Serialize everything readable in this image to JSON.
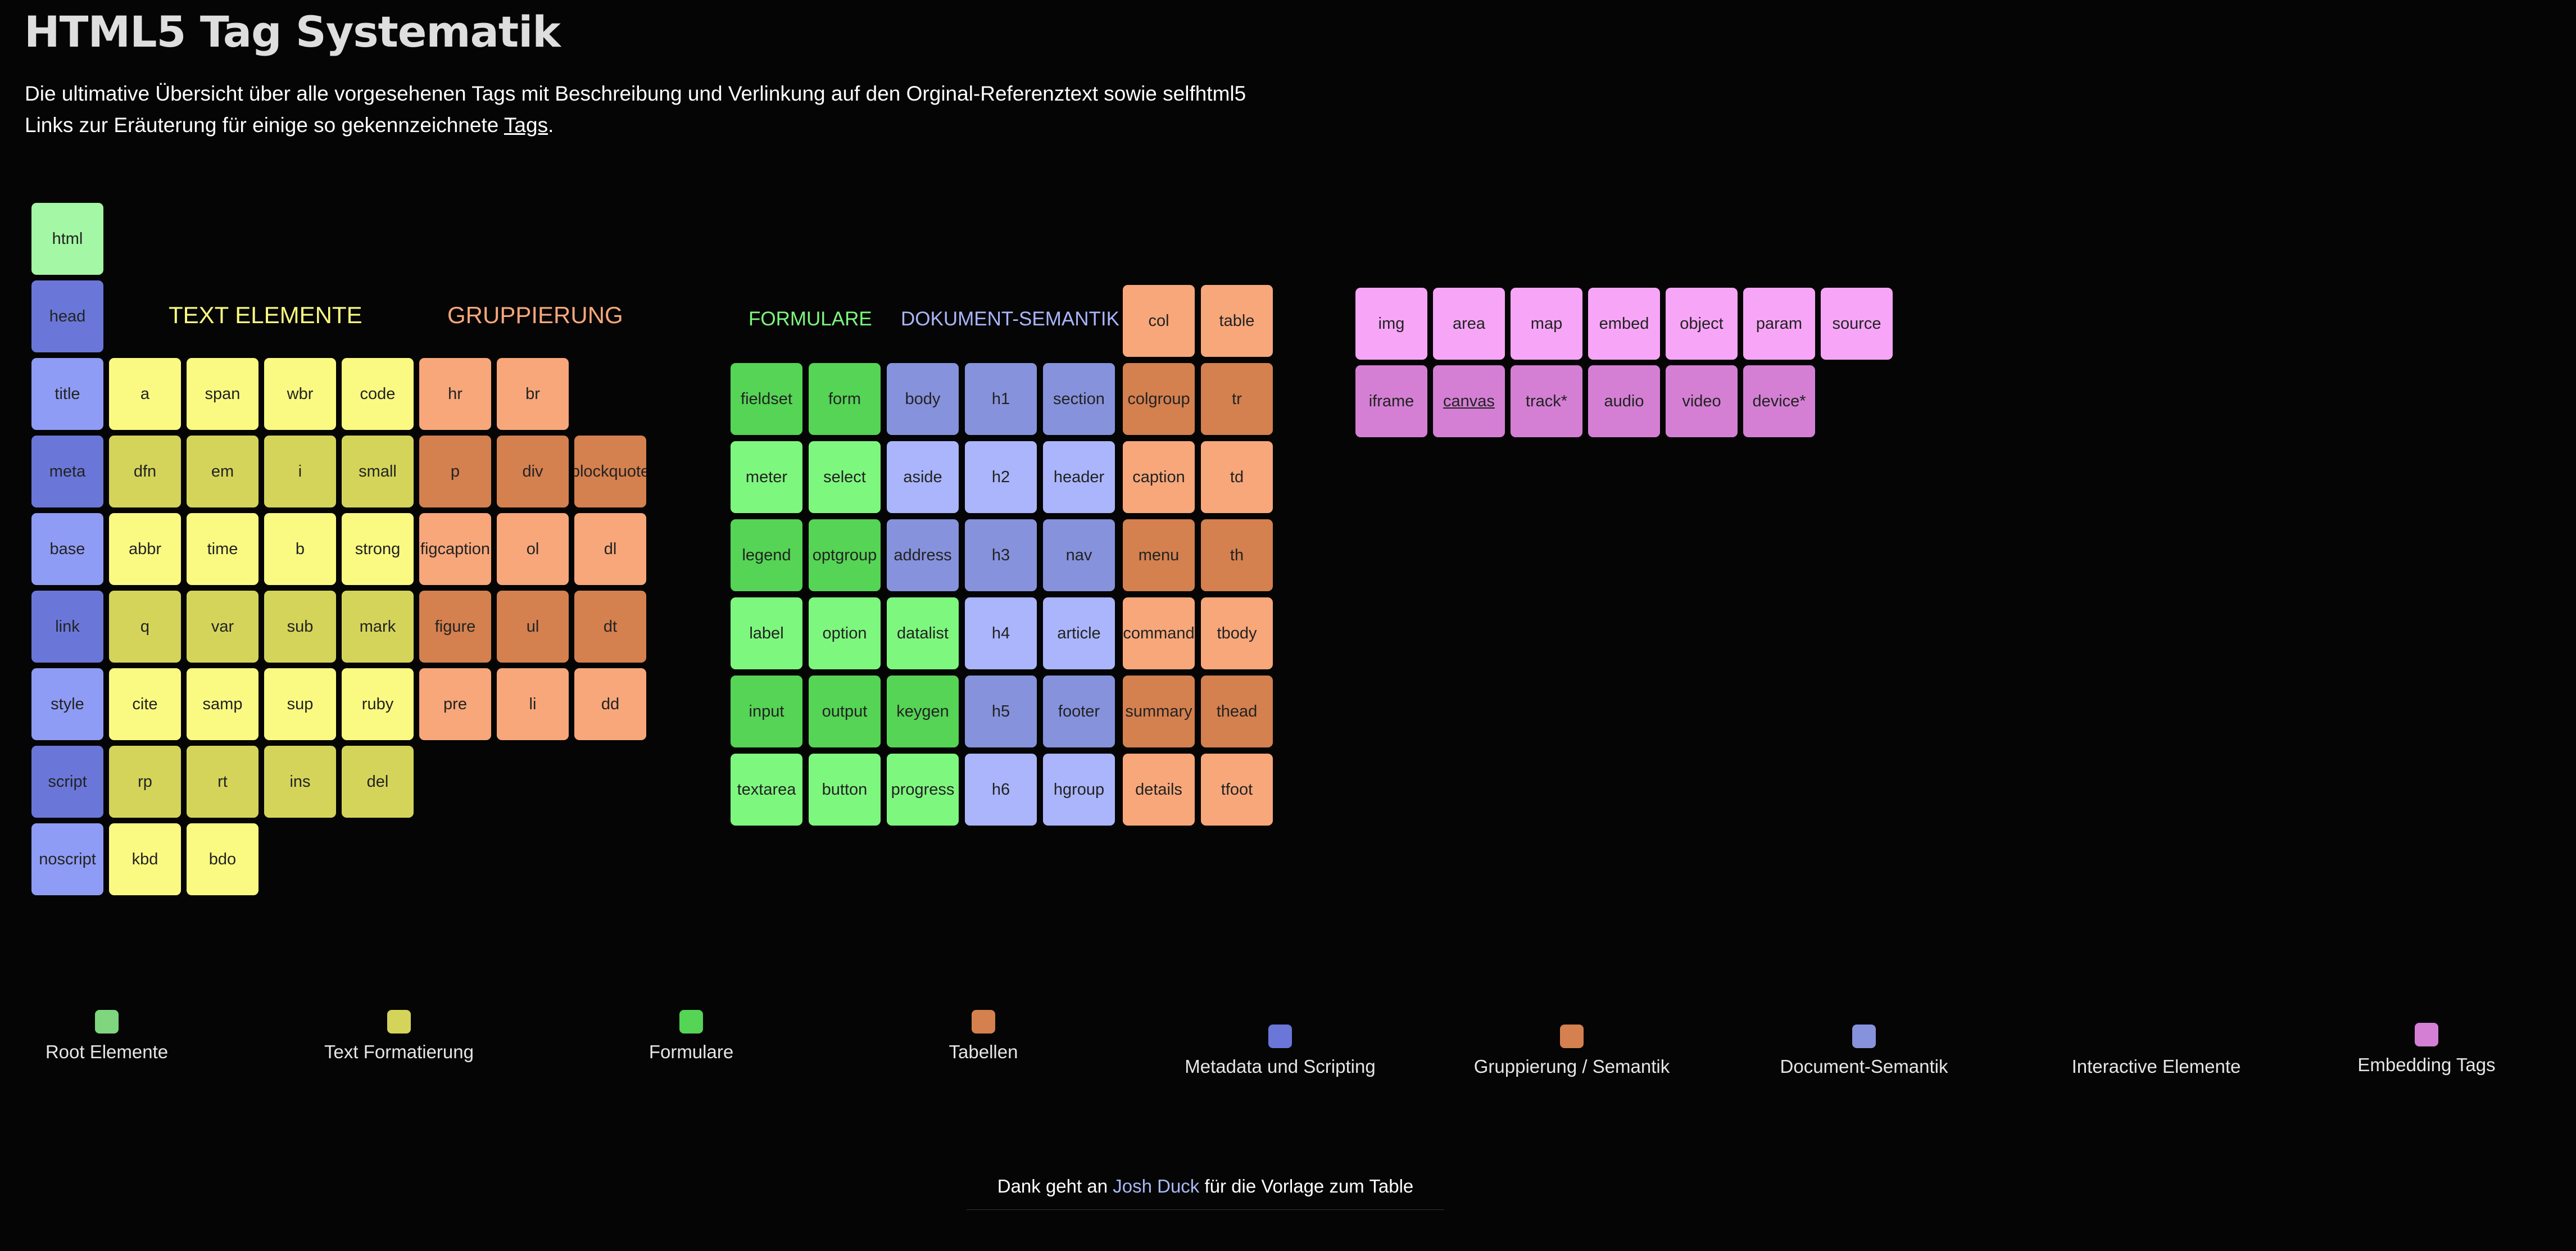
{
  "header": {
    "title": "HTML5 Tag Systematik",
    "intro_line1": "Die ultimative Übersicht über alle vorgesehenen Tags mit Beschreibung und Verlinkung auf den Orginal-Referenztext sowie selfhtml5",
    "intro_line2_prefix": "Links zur Eräuterung für einige so gekennzeichnete ",
    "intro_line2_link": "Tags",
    "intro_line2_suffix": "."
  },
  "colors": {
    "background": "#050505",
    "root": "#a4f7a4",
    "meta_dark": "#6a77d9",
    "meta_light": "#8f9cf5",
    "text_light": "#fafa82",
    "text_dark": "#d4d45a",
    "group_light": "#f7a77a",
    "group_dark": "#d4804f",
    "form_dark": "#55d455",
    "form_light": "#7ef77e",
    "doc_dark": "#8692dc",
    "doc_light": "#aab5fb",
    "embed_light": "#f7a5f7",
    "embed_dark": "#d47fd4"
  },
  "group_labels": {
    "text_elemente": "TEXT ELEMENTE",
    "gruppierung": "GRUPPIERUNG",
    "formulare": "FORMULARE",
    "dokument_semantik": "DOKUMENT-SEMANTIK"
  },
  "tiles": {
    "html": "html",
    "head": "head",
    "title": "title",
    "meta": "meta",
    "base": "base",
    "link": "link",
    "style": "style",
    "script": "script",
    "noscript": "noscript",
    "a": "a",
    "span": "span",
    "wbr": "wbr",
    "code": "code",
    "dfn": "dfn",
    "em": "em",
    "i": "i",
    "small": "small",
    "abbr": "abbr",
    "time": "time",
    "b": "b",
    "strong": "strong",
    "q": "q",
    "var": "var",
    "sub": "sub",
    "mark": "mark",
    "cite": "cite",
    "samp": "samp",
    "sup": "sup",
    "ruby": "ruby",
    "rp": "rp",
    "rt": "rt",
    "ins": "ins",
    "del": "del",
    "kbd": "kbd",
    "bdo": "bdo",
    "hr": "hr",
    "br": "br",
    "p": "p",
    "div": "div",
    "blockquote": "blockquote",
    "figcaption": "figcaption",
    "ol": "ol",
    "dl": "dl",
    "figure": "figure",
    "ul": "ul",
    "dt": "dt",
    "pre": "pre",
    "li": "li",
    "dd": "dd",
    "fieldset": "fieldset",
    "form": "form",
    "meter": "meter",
    "select": "select",
    "legend": "legend",
    "optgroup": "optgroup",
    "label": "label",
    "option": "option",
    "datalist": "datalist",
    "input": "input",
    "output": "output",
    "keygen": "keygen",
    "textarea": "textarea",
    "button": "button",
    "progress": "progress",
    "body": "body",
    "h1": "h1",
    "section": "section",
    "aside": "aside",
    "h2": "h2",
    "header": "header",
    "address": "address",
    "h3": "h3",
    "nav": "nav",
    "h4": "h4",
    "article": "article",
    "h5": "h5",
    "footer": "footer",
    "h6": "h6",
    "hgroup": "hgroup",
    "col": "col",
    "table": "table",
    "colgroup": "colgroup",
    "tr": "tr",
    "caption": "caption",
    "td": "td",
    "menu": "menu",
    "th": "th",
    "command": "command",
    "tbody": "tbody",
    "summary": "summary",
    "thead": "thead",
    "details": "details",
    "tfoot": "tfoot",
    "img": "img",
    "area": "area",
    "map": "map",
    "embed": "embed",
    "object": "object",
    "param": "param",
    "source": "source",
    "iframe": "iframe",
    "canvas": "canvas",
    "track": "track*",
    "audio": "audio",
    "video": "video",
    "device": "device*"
  },
  "legend": [
    {
      "label": "Root Elemente",
      "color": "#7fd67f"
    },
    {
      "label": "Text Formatierung",
      "color": "#d4d45a"
    },
    {
      "label": "Formulare",
      "color": "#55d455"
    },
    {
      "label": "Tabellen",
      "color": "#d4804f"
    },
    {
      "label": "Metadata und Scripting",
      "color": "#6a77d9"
    },
    {
      "label": "Gruppierung / Semantik",
      "color": "#d4804f"
    },
    {
      "label": "Document-Semantik",
      "color": "#8692dc"
    },
    {
      "label": "Interactive Elemente",
      "color": ""
    },
    {
      "label": "Embedding Tags",
      "color": "#d47fd4"
    }
  ],
  "credits": {
    "prefix": "Dank geht an ",
    "link": "Josh Duck",
    "suffix": " für die Vorlage zum Table"
  }
}
